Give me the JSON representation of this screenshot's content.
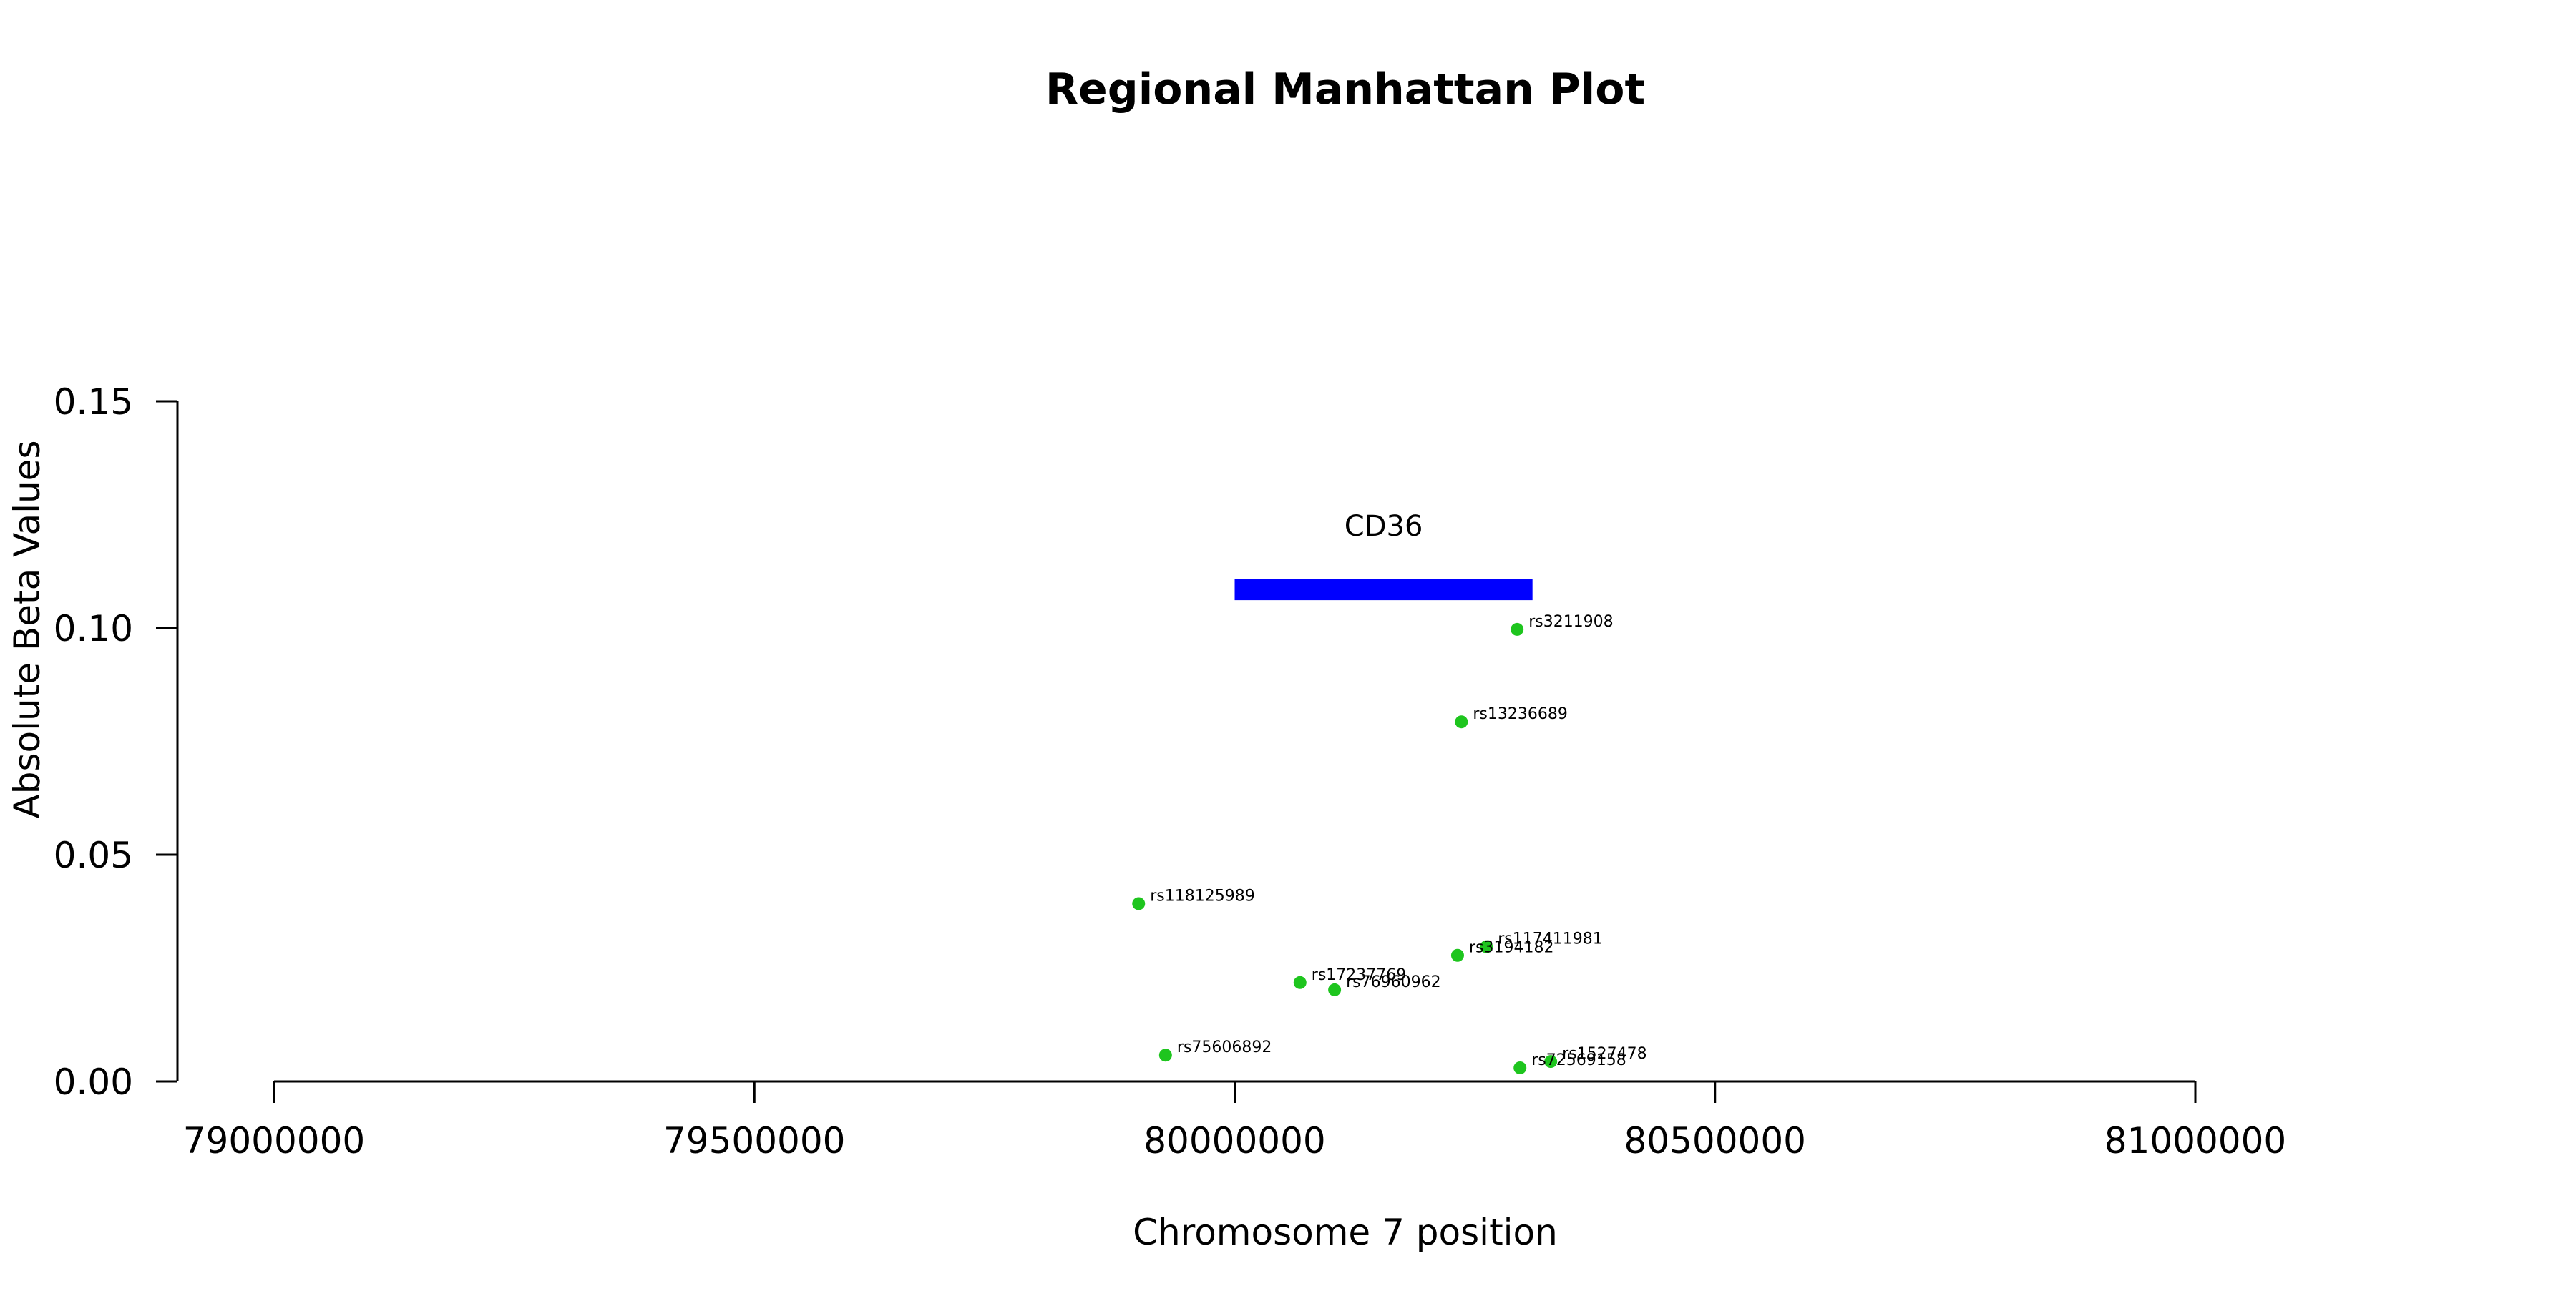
{
  "chart_data": {
    "type": "scatter",
    "title": "Regional Manhattan Plot",
    "xlabel": "Chromosome 7 position",
    "ylabel": "Absolute Beta Values",
    "xlim": [
      79000000,
      81000000
    ],
    "ylim": [
      0,
      0.15
    ],
    "x_ticks": [
      79000000,
      79500000,
      80000000,
      80500000,
      81000000
    ],
    "x_tick_labels": [
      "79000000",
      "79500000",
      "80000000",
      "80500000",
      "81000000"
    ],
    "y_ticks": [
      0,
      0.05,
      0.1,
      0.15
    ],
    "y_tick_labels": [
      "0.00",
      "0.05",
      "0.10",
      "0.15"
    ],
    "grid": false,
    "point_color": "#1ec51e",
    "gene_color": "#0000ff",
    "gene": {
      "name": "CD36",
      "start": 80000000,
      "end": 80310000,
      "y": 0.1085
    },
    "points": [
      {
        "label": "rs3211908",
        "x": 80294000,
        "y": 0.0997
      },
      {
        "label": "rs13236689",
        "x": 80236000,
        "y": 0.0793
      },
      {
        "label": "rs118125989",
        "x": 79900000,
        "y": 0.0392
      },
      {
        "label": "rs117411981",
        "x": 80262000,
        "y": 0.0297
      },
      {
        "label": "rs3194182",
        "x": 80232000,
        "y": 0.0278
      },
      {
        "label": "rs17237769",
        "x": 80068000,
        "y": 0.0218
      },
      {
        "label": "rs76960962",
        "x": 80104000,
        "y": 0.0202
      },
      {
        "label": "rs75606892",
        "x": 79928000,
        "y": 0.0058
      },
      {
        "label": "rs1527478",
        "x": 80329000,
        "y": 0.0044
      },
      {
        "label": "rs72569158",
        "x": 80297000,
        "y": 0.003
      }
    ]
  }
}
